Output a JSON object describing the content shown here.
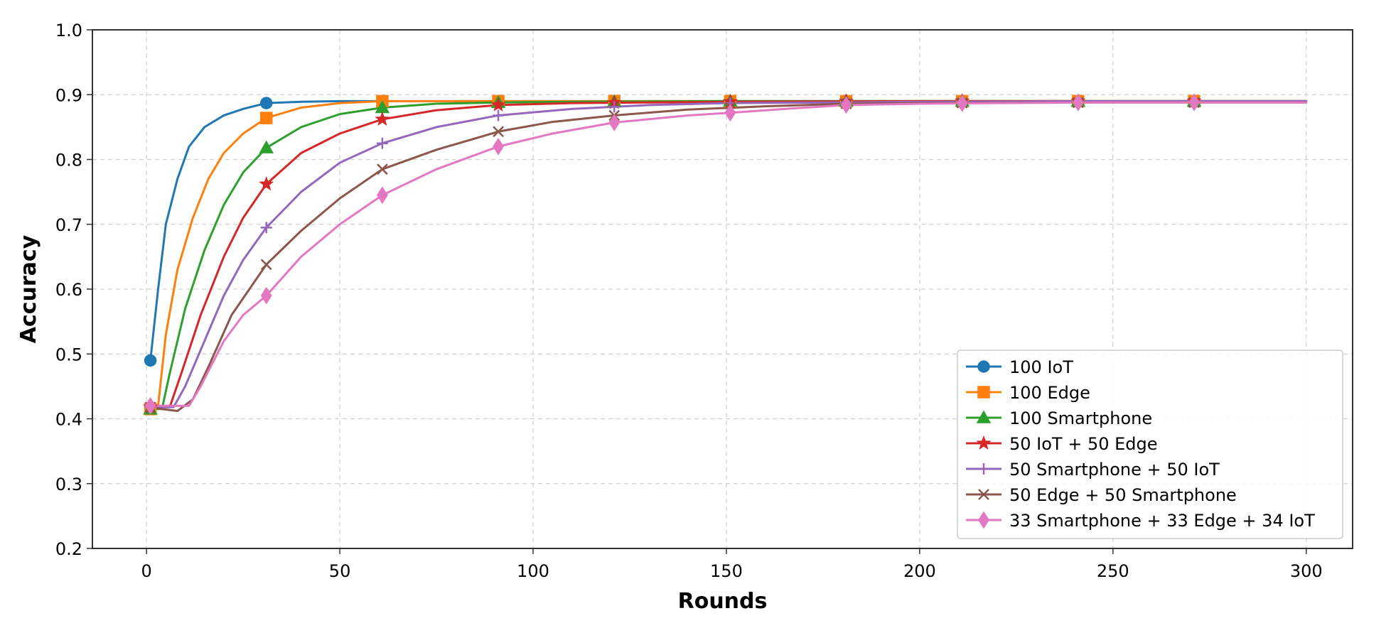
{
  "chart_data": {
    "type": "line",
    "xlabel": "Rounds",
    "ylabel": "Accuracy",
    "xlim": [
      -14,
      312
    ],
    "ylim": [
      0.2,
      1.0
    ],
    "x_ticks": [
      0,
      50,
      100,
      150,
      200,
      250,
      300
    ],
    "x_tick_labels": [
      "0",
      "50",
      "100",
      "150",
      "200",
      "250",
      "300"
    ],
    "y_ticks": [
      0.2,
      0.3,
      0.4,
      0.5,
      0.6,
      0.7,
      0.8,
      0.9,
      1.0
    ],
    "y_tick_labels": [
      "0.2",
      "0.3",
      "0.4",
      "0.5",
      "0.6",
      "0.7",
      "0.8",
      "0.9",
      "1.0"
    ],
    "grid": true,
    "legend_position": "lower-right",
    "marker_rounds": [
      1,
      31,
      61,
      91,
      121,
      151,
      181,
      211,
      241,
      271
    ],
    "series": [
      {
        "name": "100 IoT",
        "color": "#1f77b4",
        "marker": "circle",
        "points": [
          [
            1,
            0.49
          ],
          [
            3,
            0.6
          ],
          [
            5,
            0.7
          ],
          [
            8,
            0.77
          ],
          [
            11,
            0.82
          ],
          [
            15,
            0.85
          ],
          [
            20,
            0.868
          ],
          [
            25,
            0.878
          ],
          [
            31,
            0.887
          ],
          [
            40,
            0.889
          ],
          [
            50,
            0.89
          ],
          [
            70,
            0.89
          ],
          [
            100,
            0.89
          ],
          [
            150,
            0.89
          ],
          [
            200,
            0.89
          ],
          [
            250,
            0.89
          ],
          [
            300,
            0.89
          ]
        ]
      },
      {
        "name": "100 Edge",
        "color": "#ff7f0e",
        "marker": "square",
        "points": [
          [
            1,
            0.415
          ],
          [
            3,
            0.42
          ],
          [
            5,
            0.53
          ],
          [
            8,
            0.63
          ],
          [
            12,
            0.71
          ],
          [
            16,
            0.77
          ],
          [
            20,
            0.81
          ],
          [
            25,
            0.84
          ],
          [
            31,
            0.864
          ],
          [
            40,
            0.88
          ],
          [
            50,
            0.887
          ],
          [
            61,
            0.89
          ],
          [
            80,
            0.89
          ],
          [
            100,
            0.89
          ],
          [
            150,
            0.89
          ],
          [
            200,
            0.89
          ],
          [
            250,
            0.89
          ],
          [
            300,
            0.89
          ]
        ]
      },
      {
        "name": "100 Smartphone",
        "color": "#2ca02c",
        "marker": "triangle",
        "points": [
          [
            1,
            0.415
          ],
          [
            4,
            0.415
          ],
          [
            6,
            0.47
          ],
          [
            10,
            0.57
          ],
          [
            15,
            0.66
          ],
          [
            20,
            0.73
          ],
          [
            25,
            0.78
          ],
          [
            31,
            0.818
          ],
          [
            40,
            0.85
          ],
          [
            50,
            0.87
          ],
          [
            61,
            0.88
          ],
          [
            75,
            0.886
          ],
          [
            91,
            0.888
          ],
          [
            110,
            0.889
          ],
          [
            150,
            0.89
          ],
          [
            200,
            0.89
          ],
          [
            250,
            0.89
          ],
          [
            300,
            0.89
          ]
        ]
      },
      {
        "name": "50 IoT + 50 Edge",
        "color": "#d62728",
        "marker": "star",
        "points": [
          [
            1,
            0.418
          ],
          [
            6,
            0.418
          ],
          [
            9,
            0.47
          ],
          [
            14,
            0.56
          ],
          [
            20,
            0.65
          ],
          [
            25,
            0.71
          ],
          [
            31,
            0.762
          ],
          [
            40,
            0.81
          ],
          [
            50,
            0.84
          ],
          [
            61,
            0.862
          ],
          [
            75,
            0.876
          ],
          [
            91,
            0.884
          ],
          [
            110,
            0.887
          ],
          [
            130,
            0.888
          ],
          [
            150,
            0.889
          ],
          [
            200,
            0.89
          ],
          [
            250,
            0.89
          ],
          [
            300,
            0.89
          ]
        ]
      },
      {
        "name": "50 Smartphone + 50 IoT",
        "color": "#9467bd",
        "marker": "plus",
        "points": [
          [
            1,
            0.418
          ],
          [
            7,
            0.418
          ],
          [
            10,
            0.45
          ],
          [
            15,
            0.52
          ],
          [
            20,
            0.59
          ],
          [
            25,
            0.645
          ],
          [
            31,
            0.695
          ],
          [
            40,
            0.75
          ],
          [
            50,
            0.795
          ],
          [
            61,
            0.825
          ],
          [
            75,
            0.85
          ],
          [
            91,
            0.868
          ],
          [
            110,
            0.878
          ],
          [
            130,
            0.884
          ],
          [
            150,
            0.887
          ],
          [
            180,
            0.888
          ],
          [
            200,
            0.889
          ],
          [
            250,
            0.89
          ],
          [
            300,
            0.89
          ]
        ]
      },
      {
        "name": "50 Edge + 50 Smartphone",
        "color": "#8c564b",
        "marker": "x",
        "points": [
          [
            1,
            0.418
          ],
          [
            4,
            0.415
          ],
          [
            8,
            0.412
          ],
          [
            12,
            0.43
          ],
          [
            16,
            0.48
          ],
          [
            22,
            0.56
          ],
          [
            31,
            0.638
          ],
          [
            40,
            0.69
          ],
          [
            50,
            0.74
          ],
          [
            61,
            0.785
          ],
          [
            75,
            0.815
          ],
          [
            91,
            0.843
          ],
          [
            105,
            0.858
          ],
          [
            121,
            0.868
          ],
          [
            140,
            0.877
          ],
          [
            160,
            0.882
          ],
          [
            181,
            0.886
          ],
          [
            200,
            0.887
          ],
          [
            250,
            0.888
          ],
          [
            300,
            0.888
          ]
        ]
      },
      {
        "name": "33 Smartphone + 33 Edge + 34 IoT",
        "color": "#e377c2",
        "marker": "diamond",
        "points": [
          [
            1,
            0.42
          ],
          [
            6,
            0.42
          ],
          [
            11,
            0.42
          ],
          [
            14,
            0.45
          ],
          [
            20,
            0.52
          ],
          [
            25,
            0.56
          ],
          [
            31,
            0.59
          ],
          [
            40,
            0.65
          ],
          [
            50,
            0.7
          ],
          [
            61,
            0.745
          ],
          [
            75,
            0.785
          ],
          [
            91,
            0.82
          ],
          [
            105,
            0.84
          ],
          [
            121,
            0.857
          ],
          [
            140,
            0.868
          ],
          [
            151,
            0.872
          ],
          [
            165,
            0.878
          ],
          [
            181,
            0.884
          ],
          [
            200,
            0.886
          ],
          [
            220,
            0.887
          ],
          [
            250,
            0.888
          ],
          [
            300,
            0.888
          ]
        ]
      }
    ]
  }
}
